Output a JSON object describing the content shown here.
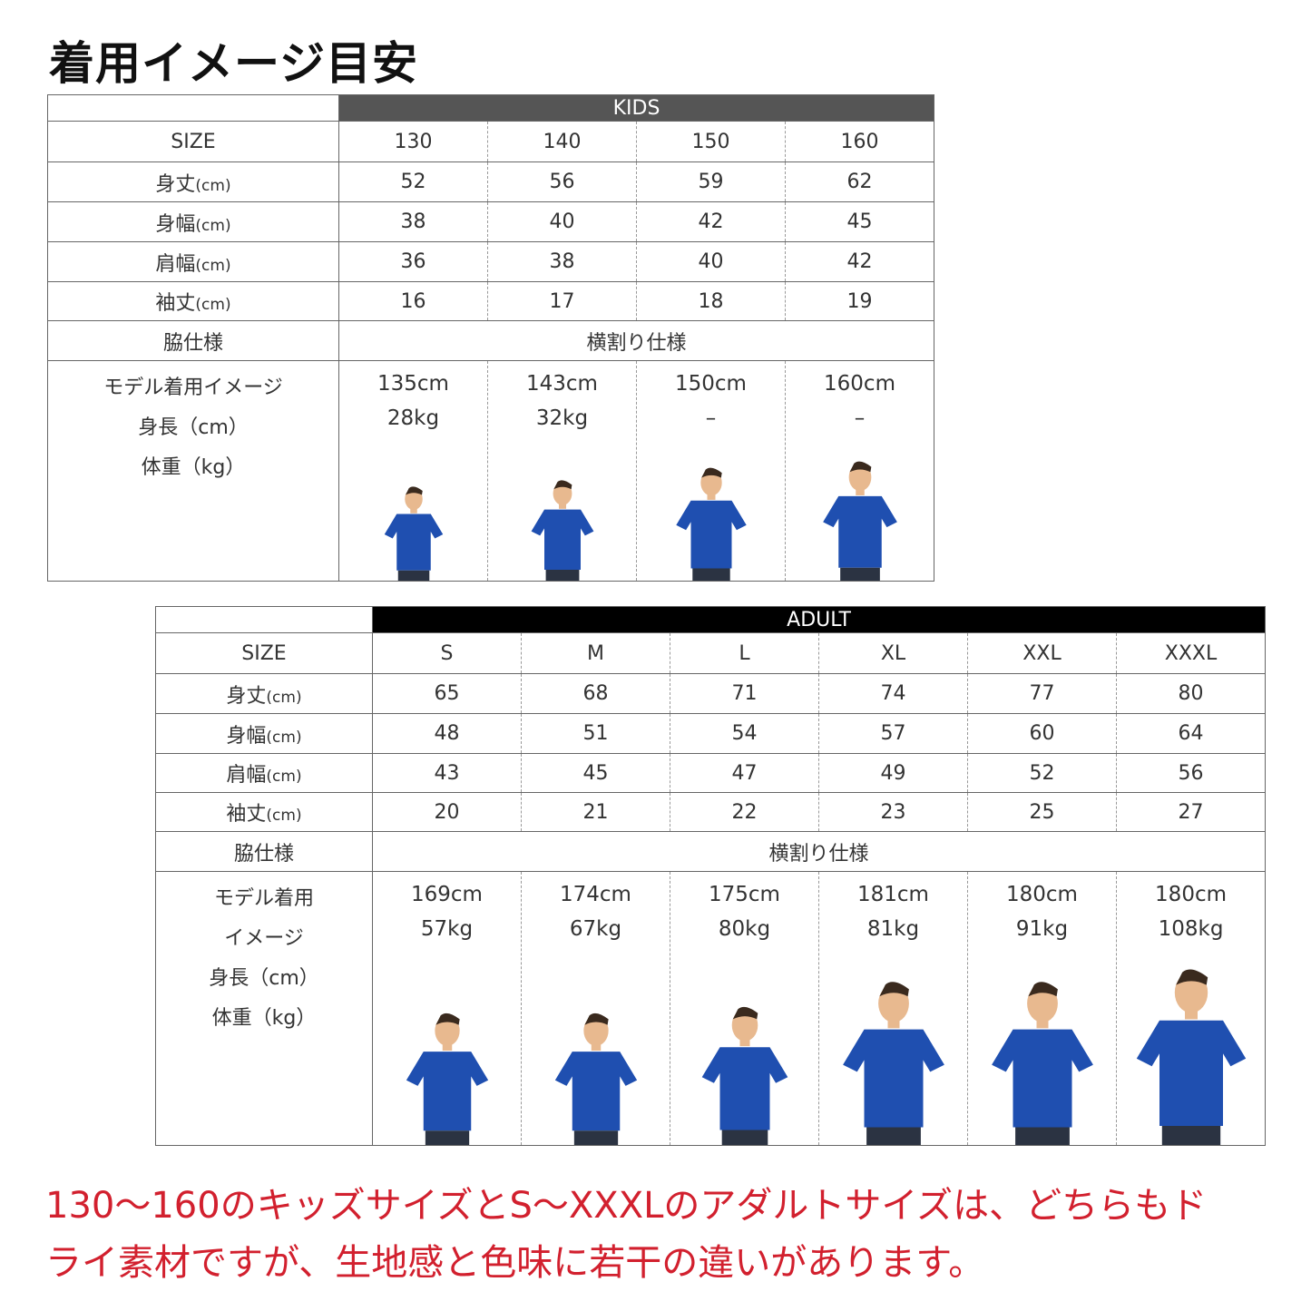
{
  "title": "着用イメージ目安",
  "kids": {
    "header": "KIDS",
    "header_color": "#555555",
    "row_labels": [
      "SIZE",
      "身丈",
      "身幅",
      "肩幅",
      "袖丈",
      "脇仕様"
    ],
    "unit": "(cm)",
    "sizes": [
      "130",
      "140",
      "150",
      "160"
    ],
    "rows": [
      [
        "52",
        "56",
        "59",
        "62"
      ],
      [
        "38",
        "40",
        "42",
        "45"
      ],
      [
        "36",
        "38",
        "40",
        "42"
      ],
      [
        "16",
        "17",
        "18",
        "19"
      ]
    ],
    "side_spec": "横割り仕様",
    "model_label": [
      "モデル着用イメージ",
      "身長（cm）",
      "体重（kg）"
    ],
    "models": [
      {
        "height": "135cm",
        "weight": "28kg",
        "image": "child-model-photo"
      },
      {
        "height": "143cm",
        "weight": "32kg",
        "image": "child-model-photo"
      },
      {
        "height": "150cm",
        "weight": "–",
        "image": "woman-model-photo"
      },
      {
        "height": "160cm",
        "weight": "–",
        "image": "woman-model-photo"
      }
    ]
  },
  "adult": {
    "header": "ADULT",
    "header_color": "#000000",
    "row_labels": [
      "SIZE",
      "身丈",
      "身幅",
      "肩幅",
      "袖丈",
      "脇仕様"
    ],
    "unit": "(cm)",
    "sizes": [
      "S",
      "M",
      "L",
      "XL",
      "XXL",
      "XXXL"
    ],
    "rows": [
      [
        "65",
        "68",
        "71",
        "74",
        "77",
        "80"
      ],
      [
        "48",
        "51",
        "54",
        "57",
        "60",
        "64"
      ],
      [
        "43",
        "45",
        "47",
        "49",
        "52",
        "56"
      ],
      [
        "20",
        "21",
        "22",
        "23",
        "25",
        "27"
      ]
    ],
    "side_spec": "横割り仕様",
    "model_label": [
      "モデル着用",
      "イメージ",
      "身長（cm）",
      "体重（kg）"
    ],
    "models": [
      {
        "height": "169cm",
        "weight": "57kg",
        "image": "man-model-photo"
      },
      {
        "height": "174cm",
        "weight": "67kg",
        "image": "man-model-photo"
      },
      {
        "height": "175cm",
        "weight": "80kg",
        "image": "man-model-photo"
      },
      {
        "height": "181cm",
        "weight": "81kg",
        "image": "man-model-photo"
      },
      {
        "height": "180cm",
        "weight": "91kg",
        "image": "man-model-photo"
      },
      {
        "height": "180cm",
        "weight": "108kg",
        "image": "man-model-photo"
      }
    ]
  },
  "shirt_color": "#1f4fb0",
  "note_color": "#d2202e",
  "note": [
    "130〜160のキッズサイズとS〜XXXLのアダルトサイズは、どちらもド",
    "ライ素材ですが、生地感と色味に若干の違いがあります。"
  ]
}
